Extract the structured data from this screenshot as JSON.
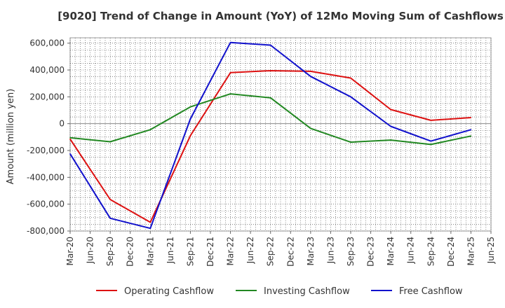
{
  "chart_data": {
    "type": "line",
    "title": "[9020]  Trend of Change in Amount (YoY) of 12Mo Moving Sum of Cashflows",
    "xlabel": "",
    "ylabel": "Amount (million yen)",
    "ylim": [
      -800000,
      640000
    ],
    "yticks": [
      600000,
      400000,
      200000,
      0,
      -200000,
      -400000,
      -600000,
      -800000
    ],
    "ytick_labels": [
      "600,000",
      "400,000",
      "200,000",
      "0",
      "-200,000",
      "-400,000",
      "-600,000",
      "-800,000"
    ],
    "categories": [
      "Mar-20",
      "Jun-20",
      "Sep-20",
      "Dec-20",
      "Mar-21",
      "Jun-21",
      "Sep-21",
      "Dec-21",
      "Mar-22",
      "Jun-22",
      "Sep-22",
      "Dec-22",
      "Mar-23",
      "Jun-23",
      "Sep-23",
      "Dec-23",
      "Mar-24",
      "Jun-24",
      "Sep-24",
      "Dec-24",
      "Mar-25",
      "Jun-25"
    ],
    "grid": true,
    "legend_position": "bottom",
    "series": [
      {
        "name": "Operating Cashflow",
        "color": "#dd1111",
        "values": [
          -115000,
          null,
          -565000,
          null,
          -735000,
          null,
          -90000,
          null,
          380000,
          null,
          395000,
          null,
          390000,
          null,
          340000,
          null,
          105000,
          null,
          25000,
          null,
          45000,
          null
        ]
      },
      {
        "name": "Investing Cashflow",
        "color": "#228822",
        "values": [
          -105000,
          null,
          -135000,
          null,
          -45000,
          null,
          125000,
          null,
          222000,
          null,
          193000,
          null,
          -35000,
          null,
          -138000,
          null,
          -122000,
          null,
          -155000,
          null,
          -92000,
          null
        ]
      },
      {
        "name": "Free Cashflow",
        "color": "#1111cc",
        "values": [
          -225000,
          null,
          -705000,
          null,
          -780000,
          null,
          35000,
          null,
          605000,
          null,
          585000,
          null,
          352000,
          null,
          200000,
          null,
          -20000,
          null,
          -130000,
          null,
          -45000,
          null
        ]
      }
    ]
  }
}
